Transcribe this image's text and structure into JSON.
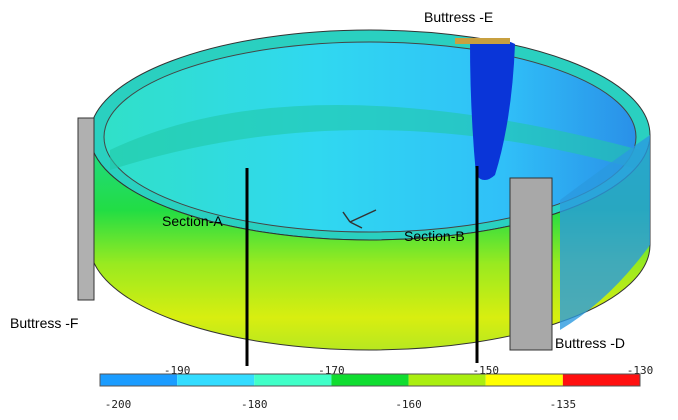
{
  "labels": {
    "buttress_e": "Buttress -E",
    "buttress_f": "Buttress -F",
    "buttress_d": "Buttress -D",
    "section_a": "Section-A",
    "section_b": "Section-B"
  },
  "colorbar": {
    "colors": [
      "#1a9cff",
      "#33dcff",
      "#40ffc8",
      "#10dd30",
      "#aaee10",
      "#ffff00",
      "#ff1010"
    ],
    "ticks": [
      -200,
      -190,
      -180,
      -170,
      -160,
      -150,
      -135,
      -130
    ]
  }
}
